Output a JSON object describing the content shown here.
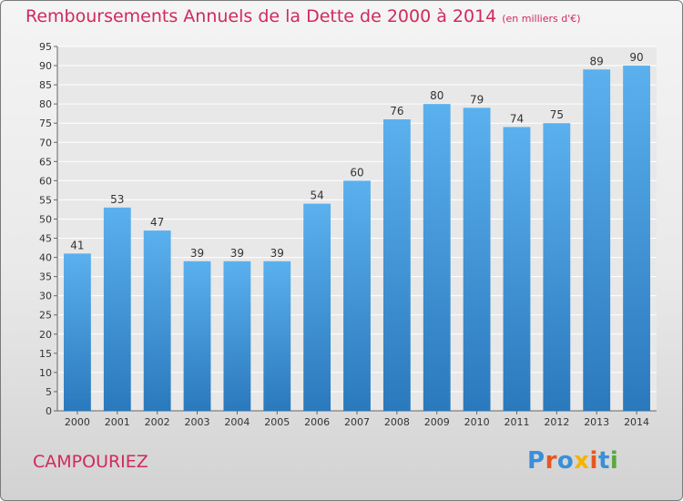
{
  "chart_data": {
    "type": "bar",
    "title": "Remboursements Annuels de la Dette de 2000 à 2014",
    "subtitle": "(en milliers d'€)",
    "categories": [
      "2000",
      "2001",
      "2002",
      "2003",
      "2004",
      "2005",
      "2006",
      "2007",
      "2008",
      "2009",
      "2010",
      "2011",
      "2012",
      "2013",
      "2014"
    ],
    "values": [
      41,
      53,
      47,
      39,
      39,
      39,
      54,
      60,
      76,
      80,
      79,
      74,
      75,
      89,
      90
    ],
    "ylim": [
      0,
      95
    ],
    "yticks": [
      0,
      5,
      10,
      15,
      20,
      25,
      30,
      35,
      40,
      45,
      50,
      55,
      60,
      65,
      70,
      75,
      80,
      85,
      90,
      95
    ],
    "xlabel": "",
    "ylabel": "",
    "grid": true,
    "bar_color": "#3d8fd8"
  },
  "footer": {
    "commune": "CAMPOURIEZ",
    "logo_letters": [
      "P",
      "r",
      "o",
      "x",
      "i",
      "t",
      "i"
    ],
    "logo_colors": [
      "#3a8fd8",
      "#e8561f",
      "#3a8fd8",
      "#f4b400",
      "#e8561f",
      "#3a8fd8",
      "#5aa83c"
    ]
  }
}
